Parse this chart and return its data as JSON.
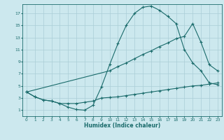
{
  "xlabel": "Humidex (Indice chaleur)",
  "bg_color": "#cce8ee",
  "grid_color": "#aacdd6",
  "line_color": "#1a6b6b",
  "xlim": [
    -0.5,
    23.5
  ],
  "ylim": [
    0,
    18.5
  ],
  "xticks": [
    0,
    1,
    2,
    3,
    4,
    5,
    6,
    7,
    8,
    9,
    10,
    11,
    12,
    13,
    14,
    15,
    16,
    17,
    18,
    19,
    20,
    21,
    22,
    23
  ],
  "yticks": [
    1,
    3,
    5,
    7,
    9,
    11,
    13,
    15,
    17
  ],
  "line1_x": [
    0,
    1,
    2,
    3,
    4,
    5,
    6,
    7,
    8,
    9,
    10,
    11,
    12,
    13,
    14,
    15,
    16,
    17,
    18,
    19,
    20,
    21,
    22,
    23
  ],
  "line1_y": [
    4,
    3.2,
    2.7,
    2.5,
    2.1,
    1.5,
    1.1,
    1.0,
    1.8,
    4.8,
    8.5,
    12.0,
    15.0,
    17.0,
    18.0,
    18.2,
    17.5,
    16.5,
    15.3,
    11.0,
    8.8,
    7.5,
    5.5,
    5.2
  ],
  "line2_x": [
    0,
    10,
    11,
    12,
    13,
    14,
    15,
    16,
    17,
    18,
    19,
    20,
    21,
    22,
    23
  ],
  "line2_y": [
    4,
    7.5,
    8.2,
    8.8,
    9.5,
    10.2,
    10.8,
    11.5,
    12.1,
    12.8,
    13.2,
    15.3,
    12.2,
    8.5,
    7.5
  ],
  "line3_x": [
    0,
    1,
    2,
    3,
    4,
    5,
    6,
    7,
    8,
    9,
    10,
    11,
    12,
    13,
    14,
    15,
    16,
    17,
    18,
    19,
    20,
    21,
    22,
    23
  ],
  "line3_y": [
    4,
    3.2,
    2.7,
    2.5,
    2.1,
    2.1,
    2.1,
    2.3,
    2.5,
    3.0,
    3.1,
    3.2,
    3.4,
    3.6,
    3.8,
    4.0,
    4.2,
    4.4,
    4.6,
    4.8,
    5.0,
    5.1,
    5.3,
    5.5
  ]
}
